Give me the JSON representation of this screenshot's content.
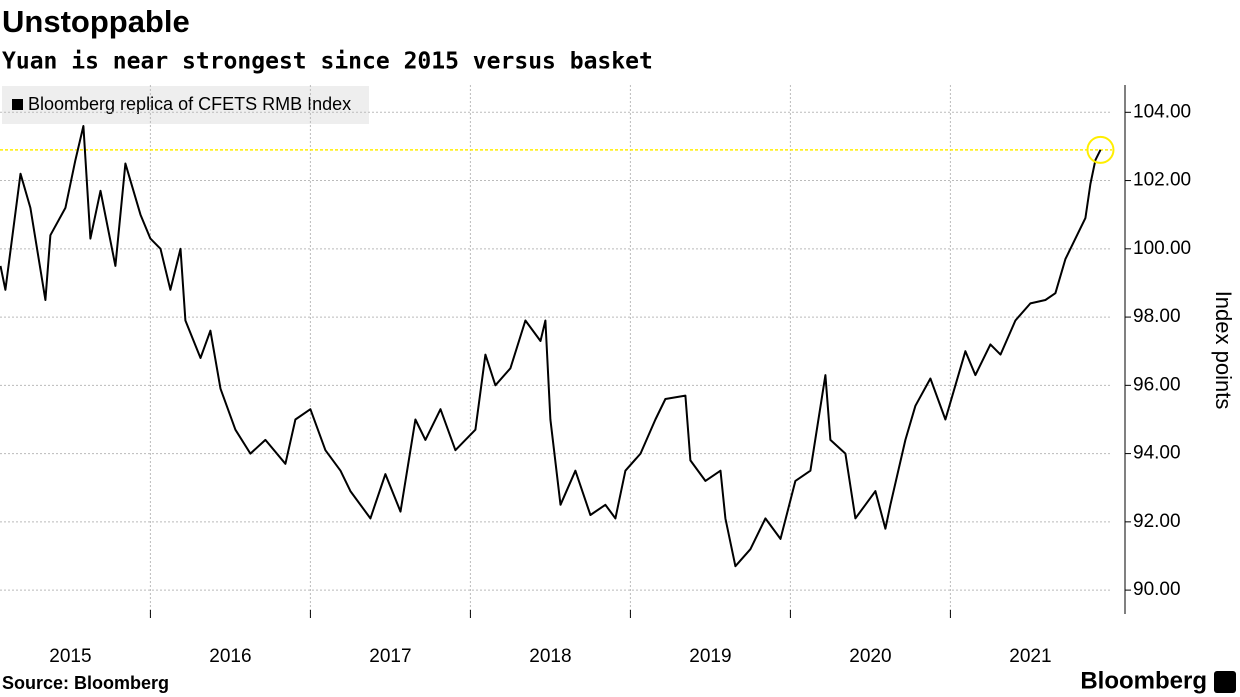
{
  "chart_data": {
    "type": "line",
    "title": "Unstoppable",
    "subtitle": "Yuan is near strongest since 2015 versus basket",
    "ylabel": "Index points",
    "source": "Source: Bloomberg",
    "brand": "Bloomberg",
    "reference_line": {
      "value": 102.9,
      "color": "#ffee00"
    },
    "x": [
      2015.063,
      2015.094,
      2015.188,
      2015.25,
      2015.344,
      2015.375,
      2015.469,
      2015.531,
      2015.581,
      2015.625,
      2015.688,
      2015.781,
      2015.844,
      2015.938,
      2016.0,
      2016.063,
      2016.125,
      2016.188,
      2016.219,
      2016.313,
      2016.375,
      2016.438,
      2016.531,
      2016.625,
      2016.719,
      2016.844,
      2016.906,
      2017.0,
      2017.094,
      2017.188,
      2017.25,
      2017.375,
      2017.469,
      2017.563,
      2017.656,
      2017.719,
      2017.813,
      2017.906,
      2018.031,
      2018.094,
      2018.156,
      2018.25,
      2018.344,
      2018.438,
      2018.469,
      2018.5,
      2018.563,
      2018.656,
      2018.75,
      2018.844,
      2018.906,
      2018.969,
      2019.063,
      2019.156,
      2019.219,
      2019.344,
      2019.375,
      2019.469,
      2019.563,
      2019.594,
      2019.656,
      2019.75,
      2019.844,
      2019.938,
      2020.031,
      2020.125,
      2020.219,
      2020.25,
      2020.344,
      2020.406,
      2020.469,
      2020.531,
      2020.594,
      2020.625,
      2020.719,
      2020.781,
      2020.875,
      2020.969,
      2021.031,
      2021.094,
      2021.156,
      2021.25,
      2021.313,
      2021.406,
      2021.5,
      2021.594,
      2021.656,
      2021.719,
      2021.781,
      2021.844,
      2021.875,
      2021.906,
      2021.938
    ],
    "series": [
      {
        "name": "Bloomberg replica of CFETS RMB Index",
        "color": "#000000",
        "values": [
          99.5,
          98.8,
          102.2,
          101.2,
          98.5,
          100.4,
          101.2,
          102.6,
          103.6,
          100.3,
          101.7,
          99.5,
          102.5,
          101.0,
          100.3,
          100.0,
          98.8,
          100.0,
          97.9,
          96.8,
          97.6,
          95.9,
          94.7,
          94.0,
          94.4,
          93.7,
          95.0,
          95.3,
          94.1,
          93.5,
          92.9,
          92.1,
          93.4,
          92.3,
          95.0,
          94.4,
          95.3,
          94.1,
          94.7,
          96.9,
          96.0,
          96.5,
          97.9,
          97.3,
          97.9,
          95.0,
          92.5,
          93.5,
          92.2,
          92.5,
          92.1,
          93.5,
          94.0,
          95.0,
          95.6,
          95.7,
          93.8,
          93.2,
          93.5,
          92.1,
          90.7,
          91.2,
          92.1,
          91.5,
          93.2,
          93.5,
          96.3,
          94.4,
          94.0,
          92.1,
          92.5,
          92.9,
          91.8,
          92.5,
          94.4,
          95.4,
          96.2,
          95.0,
          96.0,
          97.0,
          96.3,
          97.2,
          96.9,
          97.9,
          98.4,
          98.5,
          98.7,
          99.7,
          100.3,
          100.9,
          101.9,
          102.6,
          102.9
        ]
      }
    ],
    "xlim": [
      2015.06,
      2022.01
    ],
    "xticks": [
      2015,
      2016,
      2017,
      2018,
      2019,
      2020,
      2021
    ],
    "ylim": [
      89.3,
      104.8
    ],
    "yticks": [
      {
        "value": 90,
        "label": "90.00"
      },
      {
        "value": 92,
        "label": "92.00"
      },
      {
        "value": 94,
        "label": "94.00"
      },
      {
        "value": 96,
        "label": "96.00"
      },
      {
        "value": 98,
        "label": "98.00"
      },
      {
        "value": 100,
        "label": "100.00"
      },
      {
        "value": 102,
        "label": "102.00"
      },
      {
        "value": 104,
        "label": "104.00"
      }
    ],
    "grid": true,
    "legend": "top-left"
  }
}
